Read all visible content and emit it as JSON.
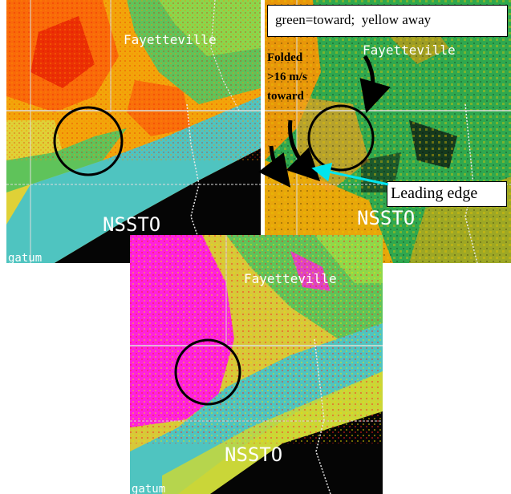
{
  "panels": {
    "top_left": {
      "labels": {
        "city": "Fayetteville",
        "radar": "NSSTO",
        "corner": "gatum"
      }
    },
    "top_right": {
      "labels": {
        "city": "Fayetteville",
        "radar": "NSSTO"
      }
    },
    "bottom": {
      "labels": {
        "city": "Fayetteville",
        "radar": "NSSTO",
        "corner": "gatum"
      }
    }
  },
  "annotations": {
    "legend": "green=toward;  yellow away",
    "folded": [
      "Folded",
      ">16 m/s",
      "toward"
    ],
    "leading_edge": "Leading edge"
  },
  "colors": {
    "toward_green": "#2fa84f",
    "away_yellow": "#e8c400",
    "leading_edge_arrow": "#00e5ee",
    "cyan_velocity": "#4fc4c0",
    "folded_magenta": "#ff22dd"
  }
}
